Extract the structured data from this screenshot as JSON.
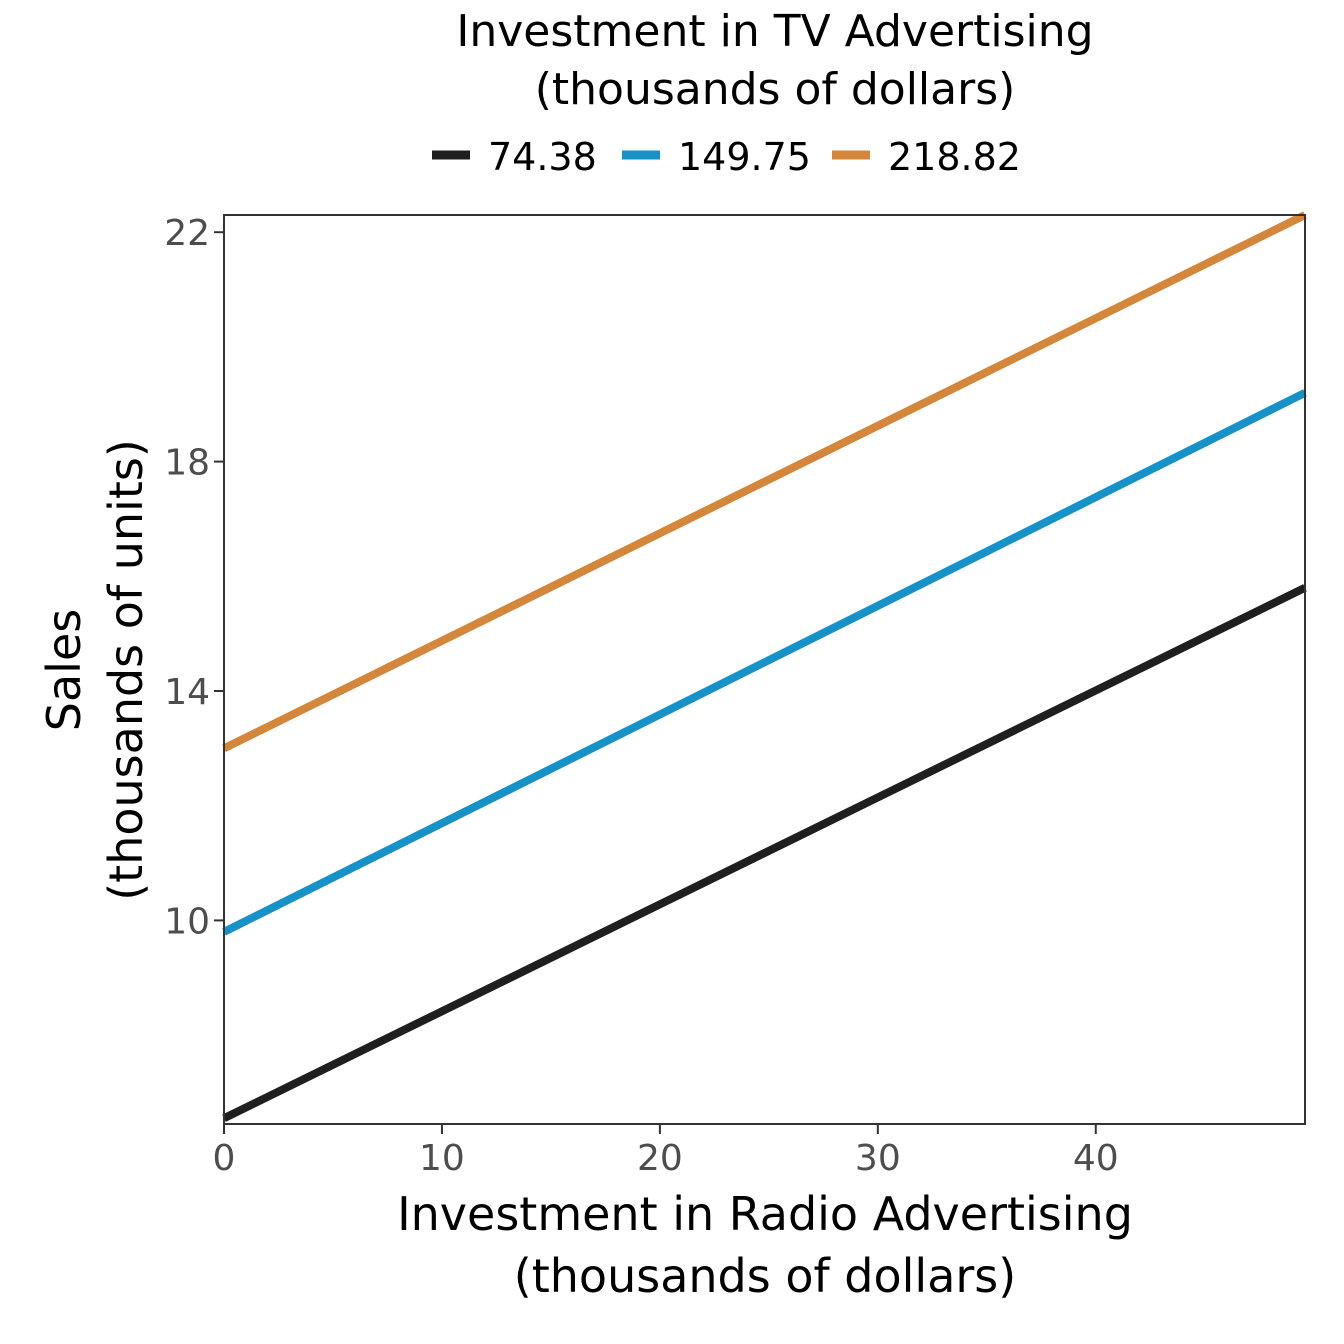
{
  "chart_data": {
    "type": "line",
    "legend": {
      "title_lines": [
        "Investment in TV Advertising",
        "(thousands of dollars)"
      ],
      "placement": "top"
    },
    "xlabel_lines": [
      "Investment in Radio Advertising",
      "(thousands of dollars)"
    ],
    "ylabel_lines": [
      "Sales",
      "(thousands of units)"
    ],
    "xlim": [
      0,
      49.6
    ],
    "ylim": [
      6.45,
      22.3
    ],
    "x_ticks": [
      0,
      10,
      20,
      30,
      40
    ],
    "y_ticks": [
      10,
      14,
      18,
      22
    ],
    "grid": false,
    "x": [
      0,
      49.6
    ],
    "series": [
      {
        "name": "74.38",
        "color": "#1f1f1f",
        "values": [
          6.55,
          15.8
        ]
      },
      {
        "name": "149.75",
        "color": "#1692c8",
        "values": [
          9.8,
          19.2
        ]
      },
      {
        "name": "218.82",
        "color": "#d4873a",
        "values": [
          13.0,
          22.3
        ]
      }
    ]
  }
}
